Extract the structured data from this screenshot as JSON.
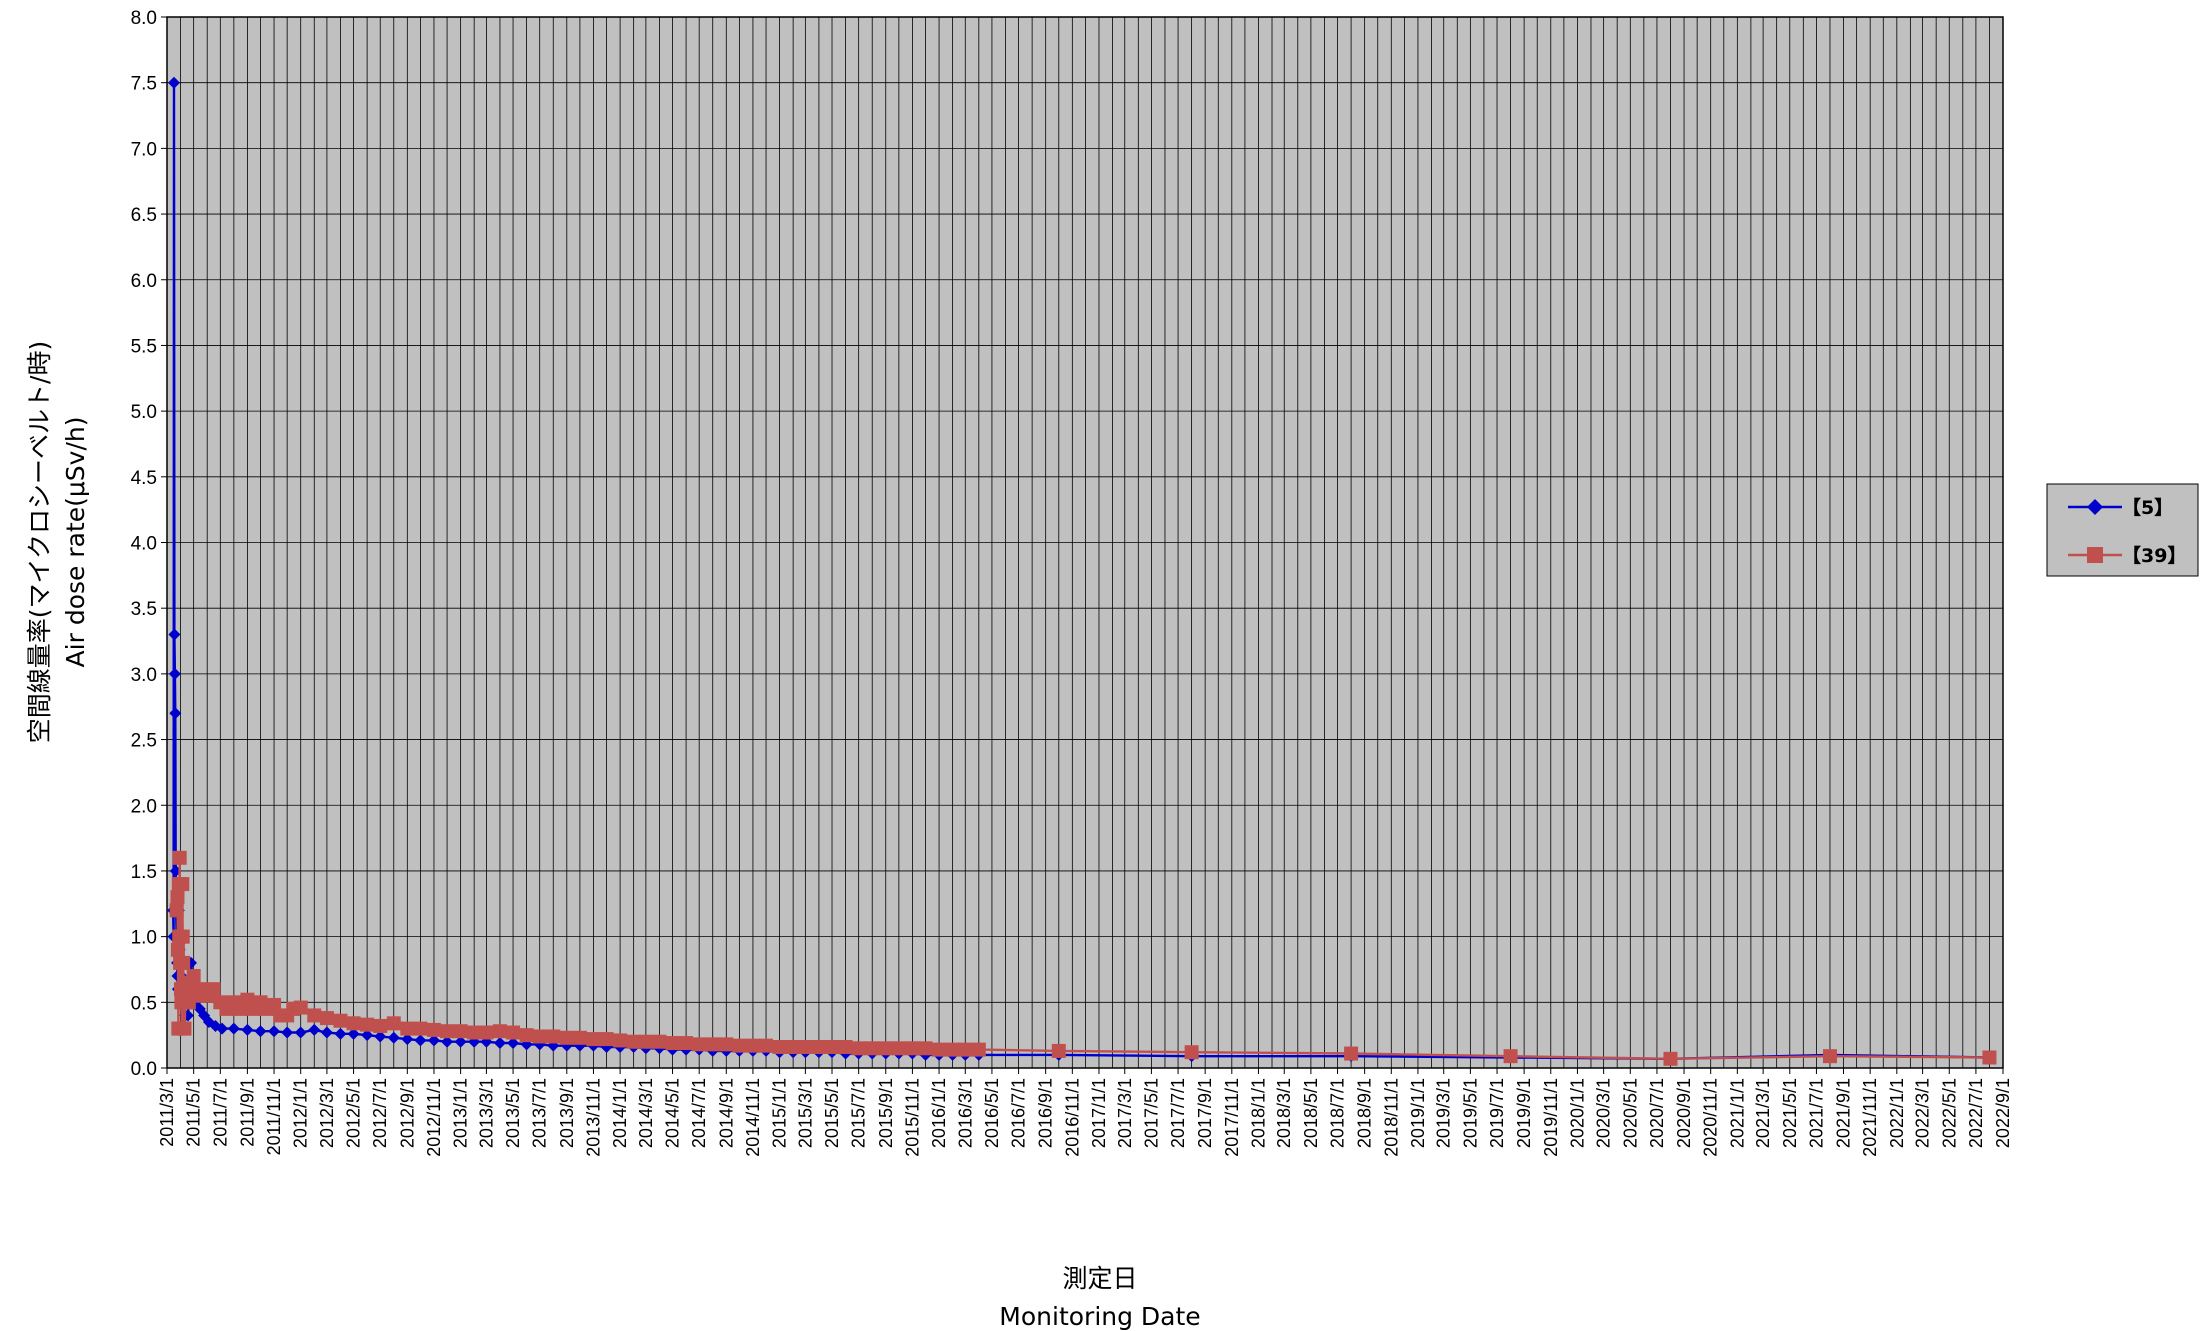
{
  "chart_data": {
    "type": "line",
    "xlabel": "測定日",
    "xlabel_en": "Monitoring Date",
    "ylabel": "空間線量率(マイクロシーベルト/時)",
    "ylabel_en": "Air dose rate(μSv/h)",
    "xlim": [
      "2011-03-01",
      "2022-09-01"
    ],
    "ylim": [
      0,
      8
    ],
    "y_ticks": [
      "0.0",
      "0.5",
      "1.0",
      "1.5",
      "2.0",
      "2.5",
      "3.0",
      "3.5",
      "4.0",
      "4.5",
      "5.0",
      "5.5",
      "6.0",
      "6.5",
      "7.0",
      "7.5",
      "8.0"
    ],
    "x_ticks": [
      "2011/3/1",
      "2011/5/1",
      "2011/7/1",
      "2011/9/1",
      "2011/11/1",
      "2012/1/1",
      "2012/3/1",
      "2012/5/1",
      "2012/7/1",
      "2012/9/1",
      "2012/11/1",
      "2013/1/1",
      "2013/3/1",
      "2013/5/1",
      "2013/7/1",
      "2013/9/1",
      "2013/11/1",
      "2014/1/1",
      "2014/3/1",
      "2014/5/1",
      "2014/7/1",
      "2014/9/1",
      "2014/11/1",
      "2015/1/1",
      "2015/3/1",
      "2015/5/1",
      "2015/7/1",
      "2015/9/1",
      "2015/11/1",
      "2016/1/1",
      "2016/3/1",
      "2016/5/1",
      "2016/7/1",
      "2016/9/1",
      "2016/11/1",
      "2017/1/1",
      "2017/3/1",
      "2017/5/1",
      "2017/7/1",
      "2017/9/1",
      "2017/11/1",
      "2018/1/1",
      "2018/3/1",
      "2018/5/1",
      "2018/7/1",
      "2018/9/1",
      "2018/11/1",
      "2019/1/1",
      "2019/3/1",
      "2019/5/1",
      "2019/7/1",
      "2019/9/1",
      "2019/11/1",
      "2020/1/1",
      "2020/3/1",
      "2020/5/1",
      "2020/7/1",
      "2020/9/1",
      "2020/11/1",
      "2021/1/1",
      "2021/3/1",
      "2021/5/1",
      "2021/7/1",
      "2021/9/1",
      "2021/11/1",
      "2022/1/1",
      "2022/3/1",
      "2022/5/1",
      "2022/7/1",
      "2022/9/1"
    ],
    "grid": true,
    "plot_background": "#c0c0c0",
    "legend_position": "right",
    "series": [
      {
        "name": "【5】",
        "color": "#0000cc",
        "marker": "diamond",
        "points": [
          [
            "2011-03-15",
            1.2
          ],
          [
            "2011-03-16",
            1.0
          ],
          [
            "2011-03-17",
            7.5
          ],
          [
            "2011-03-18",
            3.3
          ],
          [
            "2011-03-19",
            3.0
          ],
          [
            "2011-03-20",
            2.7
          ],
          [
            "2011-03-21",
            1.5
          ],
          [
            "2011-03-22",
            1.2
          ],
          [
            "2011-03-23",
            1.0
          ],
          [
            "2011-03-24",
            0.8
          ],
          [
            "2011-03-25",
            0.7
          ],
          [
            "2011-03-26",
            0.6
          ],
          [
            "2011-03-28",
            1.2
          ],
          [
            "2011-03-30",
            0.9
          ],
          [
            "2011-04-01",
            0.8
          ],
          [
            "2011-04-03",
            0.7
          ],
          [
            "2011-04-05",
            0.6
          ],
          [
            "2011-04-08",
            0.5
          ],
          [
            "2011-04-12",
            0.4
          ],
          [
            "2011-04-18",
            0.4
          ],
          [
            "2011-04-25",
            0.8
          ],
          [
            "2011-05-05",
            0.5
          ],
          [
            "2011-05-15",
            0.45
          ],
          [
            "2011-05-25",
            0.4
          ],
          [
            "2011-06-05",
            0.35
          ],
          [
            "2011-06-20",
            0.32
          ],
          [
            "2011-07-05",
            0.3
          ],
          [
            "2011-08-01",
            0.3
          ],
          [
            "2011-09-01",
            0.29
          ],
          [
            "2011-10-01",
            0.28
          ],
          [
            "2011-11-01",
            0.28
          ],
          [
            "2011-12-01",
            0.27
          ],
          [
            "2012-01-01",
            0.27
          ],
          [
            "2012-02-01",
            0.29
          ],
          [
            "2012-03-01",
            0.27
          ],
          [
            "2012-04-01",
            0.26
          ],
          [
            "2012-05-01",
            0.26
          ],
          [
            "2012-06-01",
            0.25
          ],
          [
            "2012-07-01",
            0.24
          ],
          [
            "2012-08-01",
            0.23
          ],
          [
            "2012-09-01",
            0.22
          ],
          [
            "2012-10-01",
            0.21
          ],
          [
            "2012-11-01",
            0.21
          ],
          [
            "2012-12-01",
            0.2
          ],
          [
            "2013-01-01",
            0.2
          ],
          [
            "2013-02-01",
            0.2
          ],
          [
            "2013-03-01",
            0.2
          ],
          [
            "2013-04-01",
            0.19
          ],
          [
            "2013-05-01",
            0.19
          ],
          [
            "2013-06-01",
            0.18
          ],
          [
            "2013-07-01",
            0.18
          ],
          [
            "2013-08-01",
            0.17
          ],
          [
            "2013-09-01",
            0.17
          ],
          [
            "2013-10-01",
            0.17
          ],
          [
            "2013-11-01",
            0.17
          ],
          [
            "2013-12-01",
            0.16
          ],
          [
            "2014-01-01",
            0.16
          ],
          [
            "2014-02-01",
            0.16
          ],
          [
            "2014-03-01",
            0.15
          ],
          [
            "2014-04-01",
            0.15
          ],
          [
            "2014-05-01",
            0.14
          ],
          [
            "2014-06-01",
            0.14
          ],
          [
            "2014-07-01",
            0.14
          ],
          [
            "2014-08-01",
            0.13
          ],
          [
            "2014-09-01",
            0.13
          ],
          [
            "2014-10-01",
            0.13
          ],
          [
            "2014-11-01",
            0.13
          ],
          [
            "2014-12-01",
            0.13
          ],
          [
            "2015-01-01",
            0.12
          ],
          [
            "2015-02-01",
            0.12
          ],
          [
            "2015-03-01",
            0.12
          ],
          [
            "2015-04-01",
            0.12
          ],
          [
            "2015-05-01",
            0.12
          ],
          [
            "2015-06-01",
            0.11
          ],
          [
            "2015-07-01",
            0.11
          ],
          [
            "2015-08-01",
            0.11
          ],
          [
            "2015-09-01",
            0.11
          ],
          [
            "2015-10-01",
            0.11
          ],
          [
            "2015-11-01",
            0.11
          ],
          [
            "2015-12-01",
            0.1
          ],
          [
            "2016-01-01",
            0.1
          ],
          [
            "2016-02-01",
            0.1
          ],
          [
            "2016-03-01",
            0.1
          ],
          [
            "2016-04-01",
            0.1
          ],
          [
            "2016-10-01",
            0.1
          ],
          [
            "2017-08-01",
            0.09
          ],
          [
            "2018-08-01",
            0.09
          ],
          [
            "2019-08-01",
            0.08
          ],
          [
            "2020-08-01",
            0.07
          ],
          [
            "2021-08-01",
            0.1
          ],
          [
            "2022-08-01",
            0.08
          ]
        ]
      },
      {
        "name": "【39】",
        "color": "#c0504d",
        "marker": "square",
        "points": [
          [
            "2011-03-23",
            1.2
          ],
          [
            "2011-03-25",
            1.3
          ],
          [
            "2011-03-26",
            0.9
          ],
          [
            "2011-03-27",
            0.3
          ],
          [
            "2011-03-28",
            1.4
          ],
          [
            "2011-03-29",
            1.0
          ],
          [
            "2011-03-30",
            1.6
          ],
          [
            "2011-03-31",
            0.8
          ],
          [
            "2011-04-01",
            1.0
          ],
          [
            "2011-04-02",
            0.6
          ],
          [
            "2011-04-03",
            0.5
          ],
          [
            "2011-04-04",
            0.3
          ],
          [
            "2011-04-05",
            1.4
          ],
          [
            "2011-04-06",
            1.0
          ],
          [
            "2011-04-07",
            0.8
          ],
          [
            "2011-04-08",
            0.6
          ],
          [
            "2011-04-10",
            0.3
          ],
          [
            "2011-04-12",
            0.5
          ],
          [
            "2011-04-15",
            0.55
          ],
          [
            "2011-04-20",
            0.5
          ],
          [
            "2011-04-25",
            0.65
          ],
          [
            "2011-05-01",
            0.7
          ],
          [
            "2011-05-10",
            0.55
          ],
          [
            "2011-05-20",
            0.6
          ],
          [
            "2011-06-01",
            0.55
          ],
          [
            "2011-06-15",
            0.6
          ],
          [
            "2011-07-01",
            0.5
          ],
          [
            "2011-07-15",
            0.45
          ],
          [
            "2011-08-01",
            0.5
          ],
          [
            "2011-08-15",
            0.45
          ],
          [
            "2011-09-01",
            0.52
          ],
          [
            "2011-09-15",
            0.45
          ],
          [
            "2011-10-01",
            0.5
          ],
          [
            "2011-10-15",
            0.45
          ],
          [
            "2011-11-01",
            0.48
          ],
          [
            "2011-11-15",
            0.4
          ],
          [
            "2011-12-01",
            0.4
          ],
          [
            "2011-12-15",
            0.45
          ],
          [
            "2012-01-01",
            0.46
          ],
          [
            "2012-02-01",
            0.4
          ],
          [
            "2012-03-01",
            0.38
          ],
          [
            "2012-04-01",
            0.36
          ],
          [
            "2012-05-01",
            0.34
          ],
          [
            "2012-06-01",
            0.33
          ],
          [
            "2012-07-01",
            0.32
          ],
          [
            "2012-08-01",
            0.34
          ],
          [
            "2012-09-01",
            0.3
          ],
          [
            "2012-10-01",
            0.3
          ],
          [
            "2012-11-01",
            0.29
          ],
          [
            "2012-12-01",
            0.28
          ],
          [
            "2013-01-01",
            0.28
          ],
          [
            "2013-02-01",
            0.27
          ],
          [
            "2013-03-01",
            0.27
          ],
          [
            "2013-04-01",
            0.28
          ],
          [
            "2013-05-01",
            0.27
          ],
          [
            "2013-06-01",
            0.25
          ],
          [
            "2013-07-01",
            0.24
          ],
          [
            "2013-08-01",
            0.24
          ],
          [
            "2013-09-01",
            0.23
          ],
          [
            "2013-10-01",
            0.23
          ],
          [
            "2013-11-01",
            0.22
          ],
          [
            "2013-12-01",
            0.22
          ],
          [
            "2014-01-01",
            0.21
          ],
          [
            "2014-02-01",
            0.2
          ],
          [
            "2014-03-01",
            0.2
          ],
          [
            "2014-04-01",
            0.2
          ],
          [
            "2014-05-01",
            0.19
          ],
          [
            "2014-06-01",
            0.19
          ],
          [
            "2014-07-01",
            0.18
          ],
          [
            "2014-08-01",
            0.18
          ],
          [
            "2014-09-01",
            0.18
          ],
          [
            "2014-10-01",
            0.17
          ],
          [
            "2014-11-01",
            0.17
          ],
          [
            "2014-12-01",
            0.17
          ],
          [
            "2015-01-01",
            0.16
          ],
          [
            "2015-02-01",
            0.16
          ],
          [
            "2015-03-01",
            0.16
          ],
          [
            "2015-04-01",
            0.16
          ],
          [
            "2015-05-01",
            0.16
          ],
          [
            "2015-06-01",
            0.16
          ],
          [
            "2015-07-01",
            0.15
          ],
          [
            "2015-08-01",
            0.15
          ],
          [
            "2015-09-01",
            0.15
          ],
          [
            "2015-10-01",
            0.15
          ],
          [
            "2015-11-01",
            0.15
          ],
          [
            "2015-12-01",
            0.15
          ],
          [
            "2016-01-01",
            0.14
          ],
          [
            "2016-02-01",
            0.14
          ],
          [
            "2016-03-01",
            0.14
          ],
          [
            "2016-04-01",
            0.14
          ],
          [
            "2016-10-01",
            0.13
          ],
          [
            "2017-08-01",
            0.12
          ],
          [
            "2018-08-01",
            0.11
          ],
          [
            "2019-08-01",
            0.09
          ],
          [
            "2020-08-01",
            0.07
          ],
          [
            "2021-08-01",
            0.09
          ],
          [
            "2022-08-01",
            0.08
          ]
        ]
      }
    ]
  }
}
